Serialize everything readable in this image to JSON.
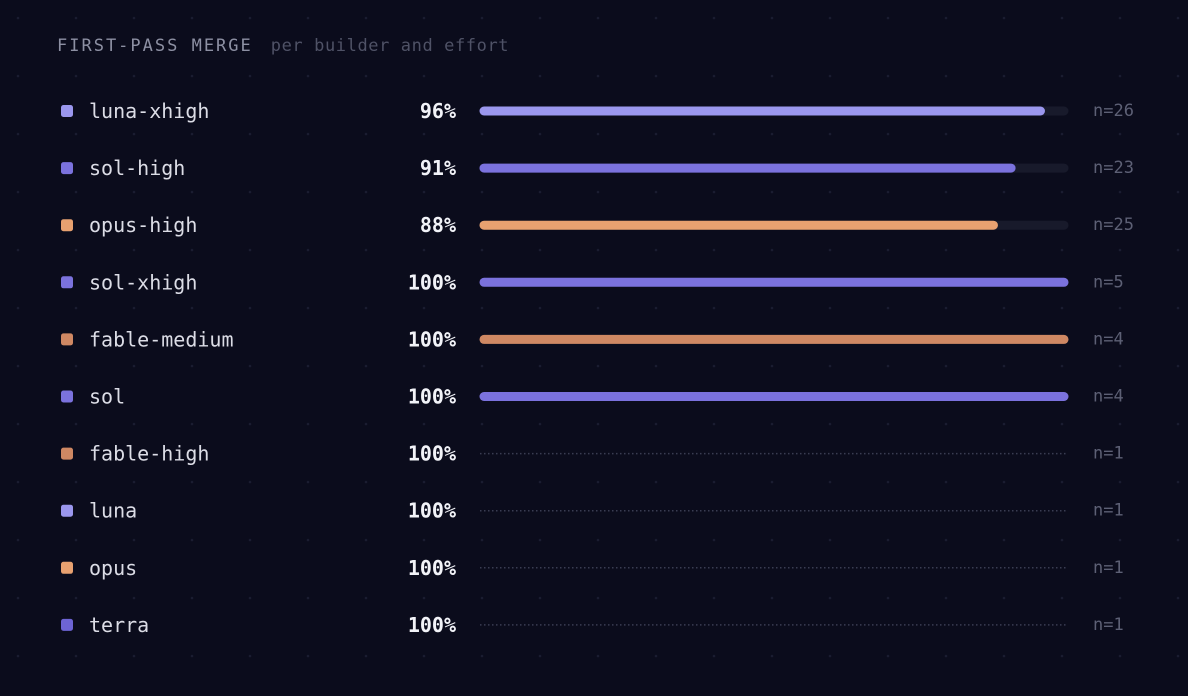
{
  "header": {
    "title": "FIRST-PASS MERGE",
    "subtitle": "per builder and effort"
  },
  "chart_data": {
    "type": "bar",
    "orientation": "horizontal",
    "title": "FIRST-PASS MERGE",
    "subtitle": "per builder and effort",
    "xlim": [
      0,
      100
    ],
    "unit": "%",
    "rows": [
      {
        "label": "luna-xhigh",
        "value": 96,
        "value_label": "96%",
        "n": "n=26",
        "bar": true,
        "color": "#9b97ee"
      },
      {
        "label": "sol-high",
        "value": 91,
        "value_label": "91%",
        "n": "n=23",
        "bar": true,
        "color": "#7b72dd"
      },
      {
        "label": "opus-high",
        "value": 88,
        "value_label": "88%",
        "n": "n=25",
        "bar": true,
        "color": "#e8a170"
      },
      {
        "label": "sol-xhigh",
        "value": 100,
        "value_label": "100%",
        "n": "n=5",
        "bar": true,
        "color": "#7b72dd"
      },
      {
        "label": "fable-medium",
        "value": 100,
        "value_label": "100%",
        "n": "n=4",
        "bar": true,
        "color": "#cf8863"
      },
      {
        "label": "sol",
        "value": 100,
        "value_label": "100%",
        "n": "n=4",
        "bar": true,
        "color": "#7b72dd"
      },
      {
        "label": "fable-high",
        "value": 100,
        "value_label": "100%",
        "n": "n=1",
        "bar": false,
        "color": "#cf8863"
      },
      {
        "label": "luna",
        "value": 100,
        "value_label": "100%",
        "n": "n=1",
        "bar": false,
        "color": "#9b97ee"
      },
      {
        "label": "opus",
        "value": 100,
        "value_label": "100%",
        "n": "n=1",
        "bar": false,
        "color": "#e8a170"
      },
      {
        "label": "terra",
        "value": 100,
        "value_label": "100%",
        "n": "n=1",
        "bar": false,
        "color": "#6d64d4"
      }
    ],
    "track_color": "#181a2b",
    "dotted_rule_color": "#3a3d52"
  }
}
